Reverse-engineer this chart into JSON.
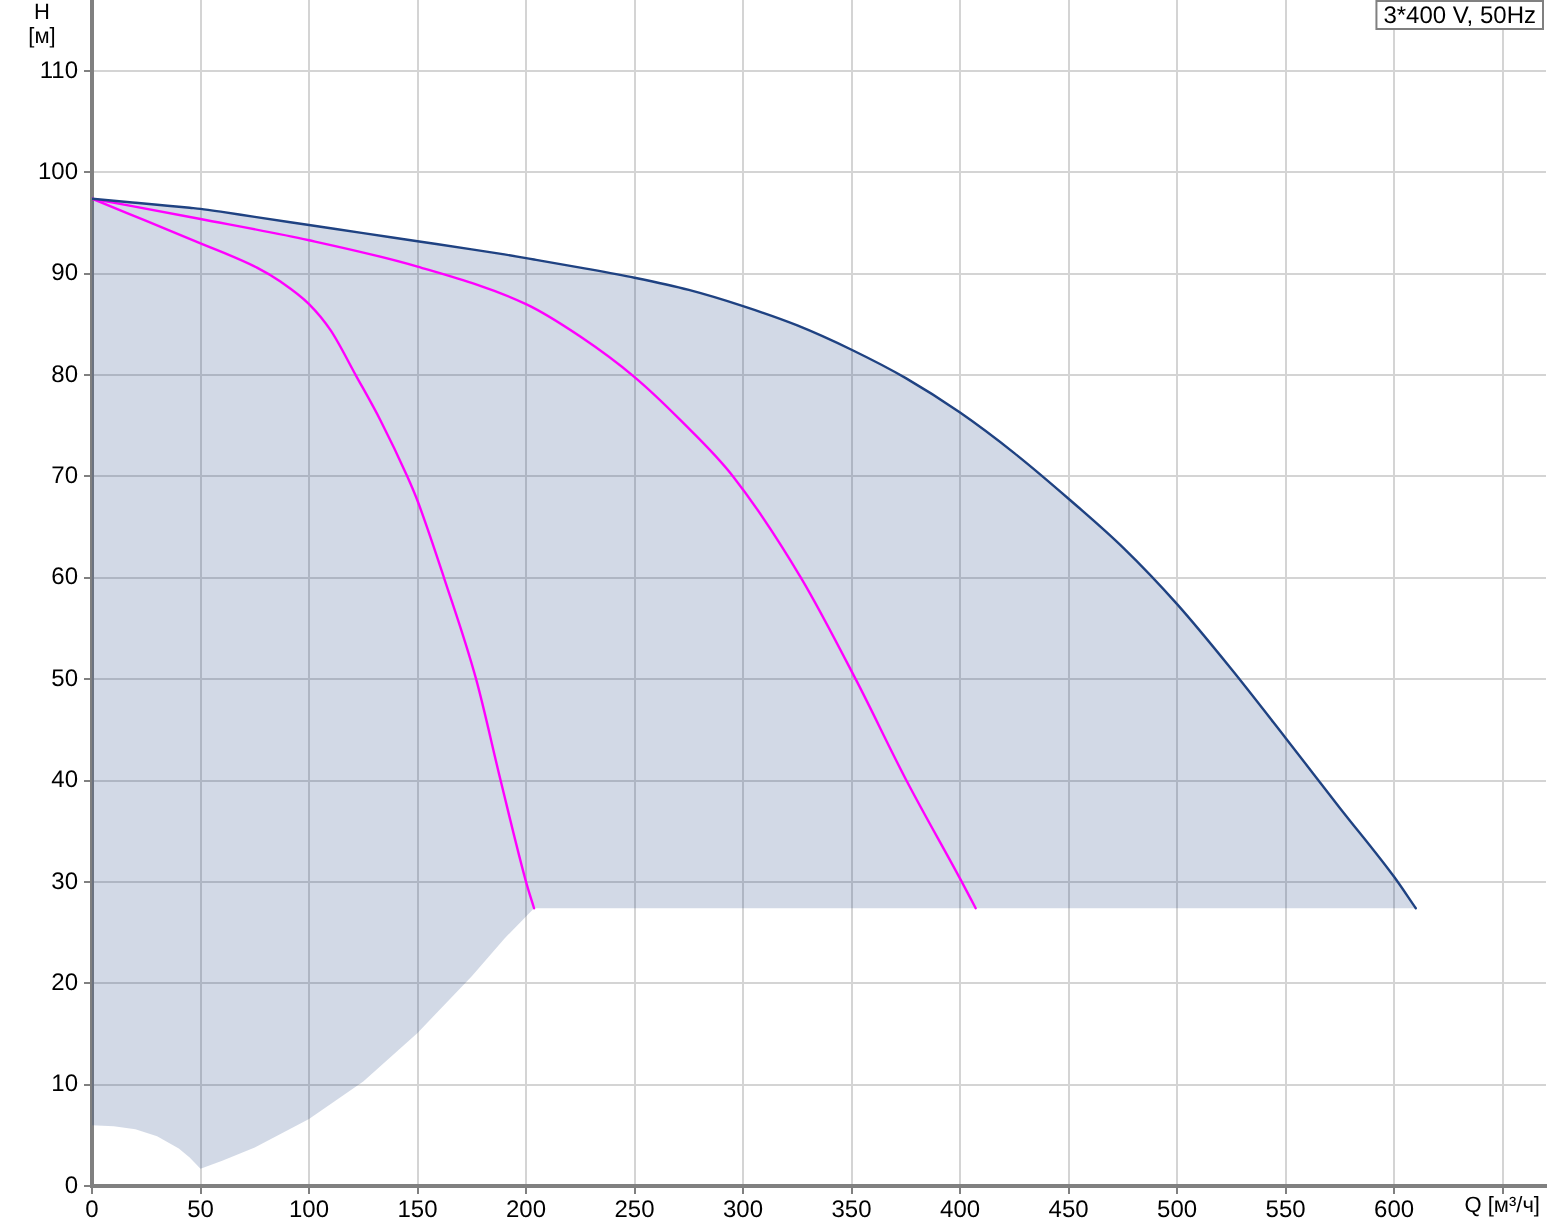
{
  "chart_data": {
    "type": "line",
    "xlabel": "Q [м³/ч]",
    "ylabel": "H\n[м]",
    "annotations": [
      "3*400 V, 50Hz"
    ],
    "xlim": [
      0,
      670
    ],
    "ylim": [
      0,
      117
    ],
    "xticks": [
      0,
      50,
      100,
      150,
      200,
      250,
      300,
      350,
      400,
      450,
      500,
      550,
      600,
      {
        "value": 650,
        "label": null
      }
    ],
    "yticks": [
      0,
      10,
      20,
      30,
      40,
      50,
      60,
      70,
      80,
      90,
      100,
      110
    ],
    "grid": true,
    "series": [
      {
        "color": "#1f4282",
        "x": [
          0,
          10,
          20,
          30,
          40,
          45,
          50,
          60,
          75,
          100,
          125,
          150,
          175,
          190,
          203.7,
          225,
          250,
          275,
          300,
          325,
          350,
          375,
          400,
          425,
          450,
          475,
          500,
          525,
          550,
          575,
          600,
          610
        ],
        "values": [
          97.4,
          97.2,
          97.0,
          96.8,
          96.6,
          96.5,
          96.4,
          96.1,
          95.6,
          94.8,
          94.0,
          93.2,
          92.4,
          91.9,
          91.4,
          90.6,
          89.6,
          88.4,
          86.8,
          84.9,
          82.5,
          79.7,
          76.3,
          72.3,
          67.8,
          63.0,
          57.4,
          51.0,
          44.2,
          37.3,
          30.5,
          27.4
        ],
        "upper": [
          97.4,
          97.2,
          97.0,
          96.8,
          96.6,
          96.5,
          96.4,
          96.1,
          95.6,
          94.8,
          94.0,
          93.2,
          92.4,
          91.9,
          91.4,
          90.6,
          89.6,
          88.4,
          86.8,
          84.9,
          82.5,
          79.7,
          76.3,
          72.3,
          67.8,
          63.0,
          57.4,
          51.0,
          44.2,
          37.3,
          30.5,
          27.4
        ],
        "lower": [
          6.0,
          5.9,
          5.6,
          4.9,
          3.7,
          2.8,
          1.7,
          2.5,
          3.8,
          6.6,
          10.3,
          15.1,
          20.7,
          24.4,
          27.4,
          27.4,
          27.4,
          27.4,
          27.4,
          27.4,
          27.4,
          27.4,
          27.4,
          27.4,
          27.4,
          27.4,
          27.4,
          27.4,
          27.4,
          27.4,
          27.4,
          27.4
        ]
      },
      {
        "color": "#ff00ff",
        "x": [
          0,
          25,
          50,
          76,
          87,
          100,
          110,
          121.5,
          133,
          145.3,
          150,
          162.2,
          177,
          188.3,
          200,
          203.7
        ],
        "values": [
          97.4,
          95.2,
          93.0,
          90.6,
          89.2,
          87.0,
          84.4,
          80.0,
          75.5,
          70.0,
          67.6,
          60.0,
          50.0,
          40.0,
          30.0,
          27.4
        ]
      },
      {
        "color": "#ff00ff",
        "x": [
          0,
          50,
          100,
          150,
          200,
          225,
          250,
          271.4,
          295.4,
          326.7,
          351.9,
          375.3,
          400.8,
          407.2
        ],
        "values": [
          97.4,
          95.4,
          93.3,
          90.7,
          87.0,
          83.8,
          79.8,
          75.5,
          70.0,
          60.0,
          50.0,
          40.0,
          30.0,
          27.4
        ]
      }
    ]
  }
}
